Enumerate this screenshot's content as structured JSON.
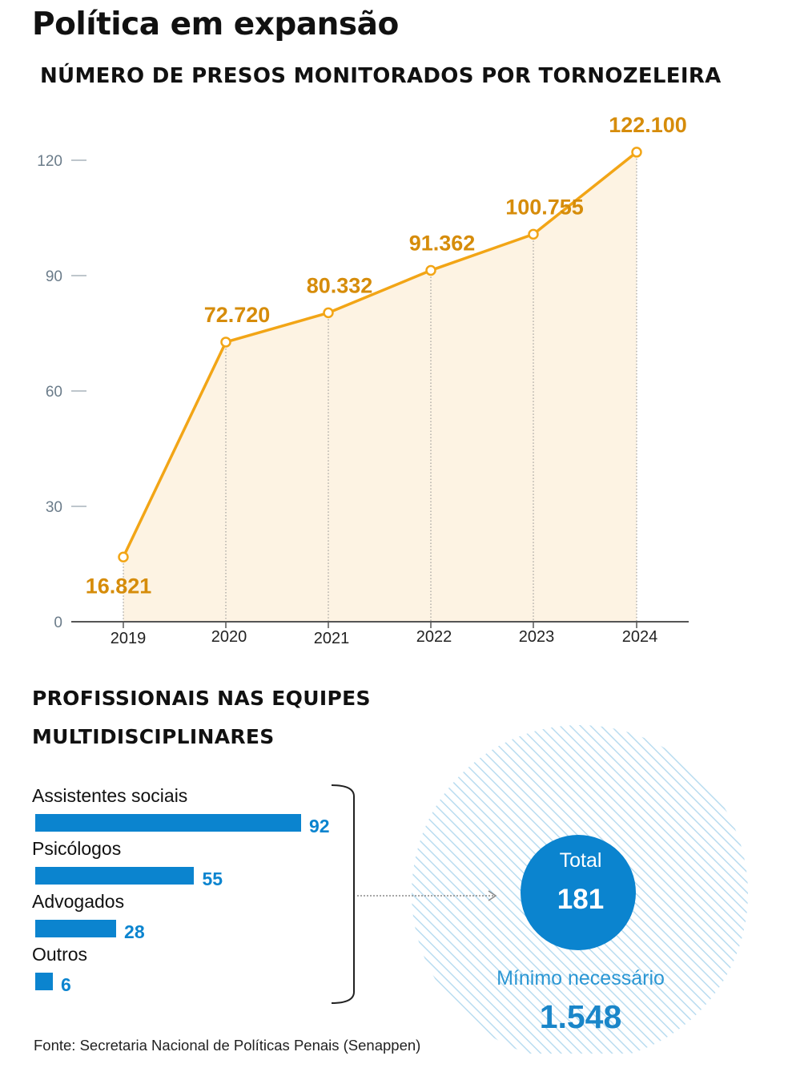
{
  "title": "Política em expansão",
  "subtitle": "NÚMERO DE PRESOS MONITORADOS POR TORNOZELEIRA",
  "colors": {
    "line": "#f2a516",
    "area": "#fdf3e3",
    "value_label": "#d68c0a",
    "bar": "#0b84cf",
    "circle": "#0b84cf",
    "hatch": "#b9dcf0"
  },
  "chart_data": [
    {
      "type": "area",
      "title": "NÚMERO DE PRESOS MONITORADOS POR TORNOZELEIRA",
      "categories": [
        "2019",
        "2020",
        "2021",
        "2022",
        "2023",
        "2024"
      ],
      "values": [
        16.821,
        72.72,
        80.332,
        91.362,
        100.755,
        122.1
      ],
      "value_labels": [
        "16.821",
        "72.720",
        "80.332",
        "91.362",
        "100.755",
        "122.100"
      ],
      "yticks": [
        0,
        30,
        60,
        90,
        120
      ],
      "ylim": [
        0,
        120
      ],
      "xlabel": "",
      "ylabel": "",
      "grid": false
    },
    {
      "type": "bar",
      "title": "PROFISSIONAIS NAS EQUIPES MULTIDISCIPLINARES",
      "categories": [
        "Assistentes sociais",
        "Psicólogos",
        "Advogados",
        "Outros"
      ],
      "values": [
        92,
        55,
        28,
        6
      ],
      "total_label": "Total",
      "total": 181,
      "minimum_label": "Mínimo necessário",
      "minimum": "1.548"
    }
  ],
  "section2_title": "PROFISSIONAIS NAS EQUIPES MULTIDISCIPLINARES",
  "summary": {
    "total_label": "Total",
    "total_value": "181",
    "minimum_label": "Mínimo necessário",
    "minimum_value": "1.548"
  },
  "source": "Fonte: Secretaria Nacional de Políticas Penais (Senappen)"
}
